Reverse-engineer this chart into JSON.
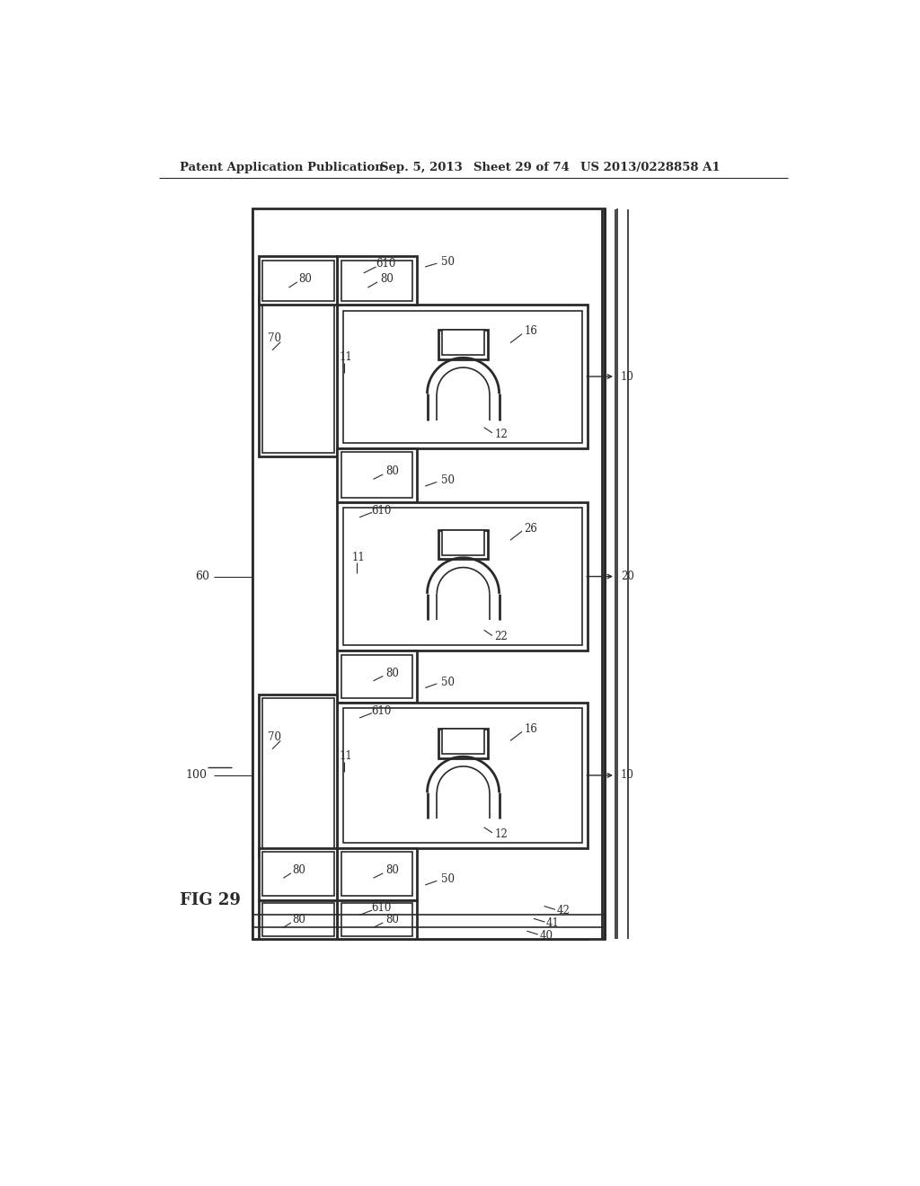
{
  "bg_color": "#ffffff",
  "line_color": "#2a2a2a",
  "header_text": "Patent Application Publication",
  "header_date": "Sep. 5, 2013",
  "header_sheet": "Sheet 29 of 74",
  "header_patent": "US 2013/0228858 A1",
  "fig_label": "FIG 29",
  "lw": 1.2,
  "lw_thick": 2.0
}
